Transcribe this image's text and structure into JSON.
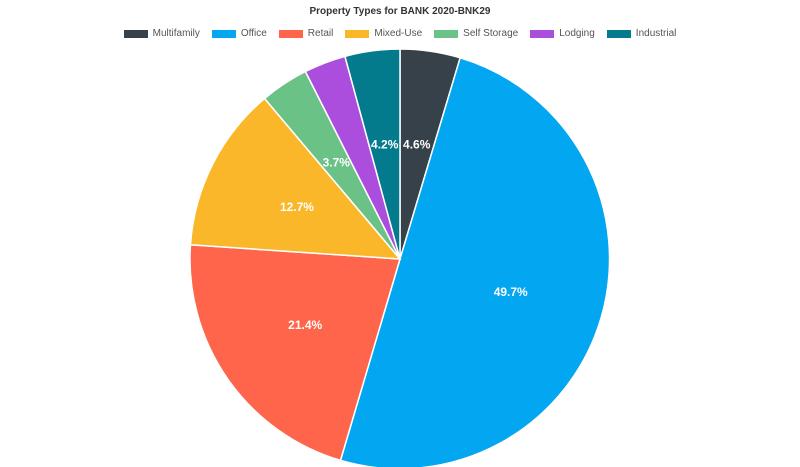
{
  "chart_data": {
    "type": "pie",
    "title": "Property Types for BANK 2020-BNK29",
    "legend_position": "top",
    "slices": [
      {
        "name": "Multifamily",
        "value": 4.6,
        "label": "4.6%",
        "color": "#36414a"
      },
      {
        "name": "Office",
        "value": 49.7,
        "label": "49.7%",
        "color": "#03a6f0"
      },
      {
        "name": "Retail",
        "value": 21.4,
        "label": "21.4%",
        "color": "#fe654b"
      },
      {
        "name": "Mixed-Use",
        "value": 12.7,
        "label": "12.7%",
        "color": "#fbb72a"
      },
      {
        "name": "Self Storage",
        "value": 3.7,
        "label": "3.7%",
        "color": "#6bc287"
      },
      {
        "name": "Lodging",
        "value": 3.2,
        "label": "",
        "color": "#ac4edd"
      },
      {
        "name": "Industrial",
        "value": 4.2,
        "label": "4.2%",
        "color": "#047a8d"
      }
    ]
  }
}
